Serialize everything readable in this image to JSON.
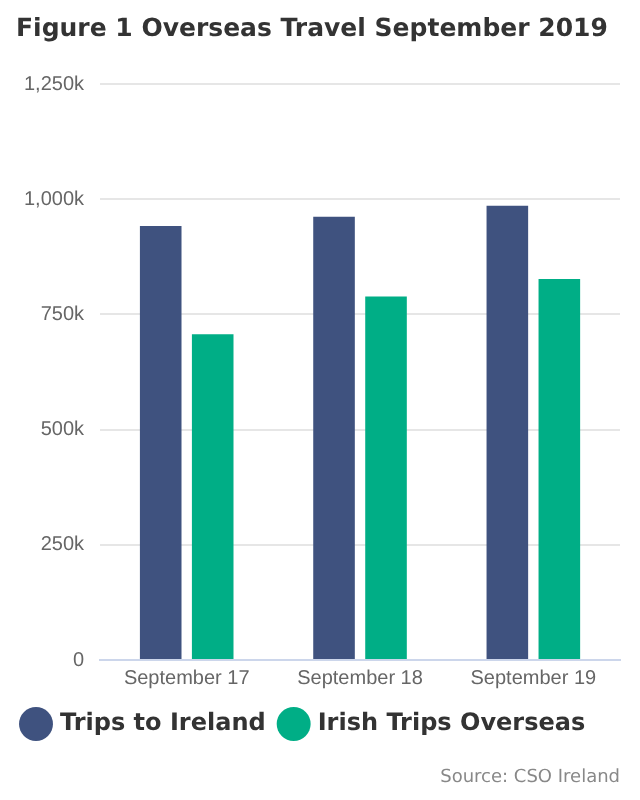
{
  "chart_data": {
    "type": "bar",
    "title": "Figure 1 Overseas Travel September 2019",
    "categories": [
      "September 17",
      "September 18",
      "September 19"
    ],
    "series": [
      {
        "name": "Trips to Ireland",
        "color": "#3f527f",
        "values": [
          942000,
          962000,
          986000
        ]
      },
      {
        "name": "Irish Trips Overseas",
        "color": "#00ae86",
        "values": [
          707000,
          789000,
          827000
        ]
      }
    ],
    "ylim": [
      0,
      1250000
    ],
    "yticks": [
      {
        "value": 0,
        "label": "0"
      },
      {
        "value": 250000,
        "label": "250k"
      },
      {
        "value": 500000,
        "label": "500k"
      },
      {
        "value": 750000,
        "label": "750k"
      },
      {
        "value": 1000000,
        "label": "1,000k"
      },
      {
        "value": 1250000,
        "label": "1,250k"
      }
    ],
    "grid": "y",
    "legend": "bottom",
    "annotations": [
      "Source: CSO Ireland"
    ]
  }
}
